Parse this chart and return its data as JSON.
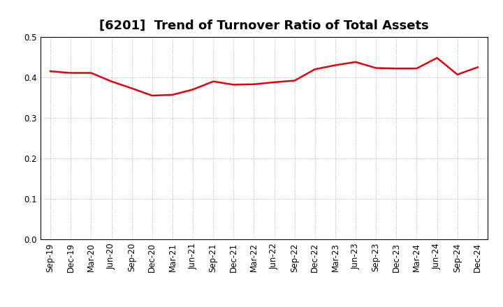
{
  "title": "[6201]  Trend of Turnover Ratio of Total Assets",
  "x_labels": [
    "Sep-19",
    "Dec-19",
    "Mar-20",
    "Jun-20",
    "Sep-20",
    "Dec-20",
    "Mar-21",
    "Jun-21",
    "Sep-21",
    "Dec-21",
    "Mar-22",
    "Jun-22",
    "Sep-22",
    "Dec-22",
    "Mar-23",
    "Jun-23",
    "Sep-23",
    "Dec-23",
    "Mar-24",
    "Jun-24",
    "Sep-24",
    "Dec-24"
  ],
  "y_values": [
    0.415,
    0.411,
    0.411,
    0.39,
    0.373,
    0.355,
    0.357,
    0.37,
    0.39,
    0.382,
    0.383,
    0.388,
    0.392,
    0.42,
    0.43,
    0.438,
    0.423,
    0.422,
    0.422,
    0.448,
    0.407,
    0.425
  ],
  "ylim": [
    0.0,
    0.5
  ],
  "yticks": [
    0.0,
    0.1,
    0.2,
    0.3,
    0.4,
    0.5
  ],
  "line_color": "#e00010",
  "line_width": 1.8,
  "bg_color": "#ffffff",
  "plot_bg_color": "#ffffff",
  "grid_color": "#999999",
  "title_fontsize": 13,
  "tick_fontsize": 8.5,
  "spine_color": "#000000"
}
